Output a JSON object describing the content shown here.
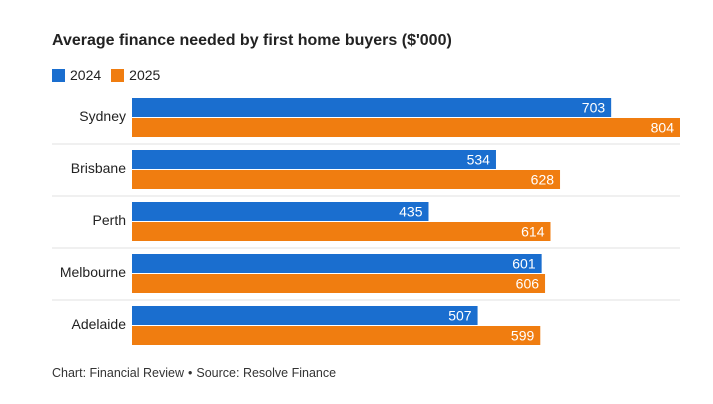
{
  "chart_data": {
    "type": "bar",
    "orientation": "horizontal",
    "title": "Average finance needed by first home buyers ($'000)",
    "categories": [
      "Sydney",
      "Brisbane",
      "Perth",
      "Melbourne",
      "Adelaide"
    ],
    "series": [
      {
        "name": "2024",
        "color": "#1a6ecf",
        "values": [
          703,
          534,
          435,
          601,
          507
        ]
      },
      {
        "name": "2025",
        "color": "#f07d10",
        "values": [
          804,
          628,
          614,
          606,
          599
        ]
      }
    ],
    "xlim": [
      0,
      804
    ],
    "xlabel": "",
    "ylabel": "",
    "grid": false,
    "legend_position": "top-left"
  },
  "footer": {
    "credit": "Chart: Financial Review",
    "separator": "•",
    "source": "Source: Resolve Finance"
  }
}
